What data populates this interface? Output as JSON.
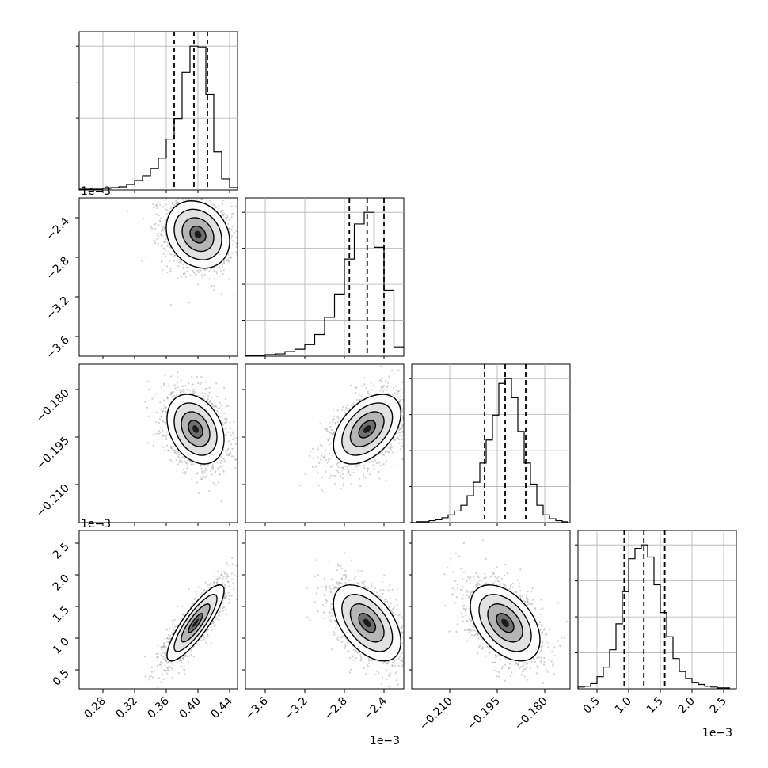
{
  "figure": {
    "type": "corner_plot",
    "parameters": [
      {
        "range": [
          0.25,
          0.45
        ],
        "ticks": [
          "0.28",
          "0.32",
          "0.36",
          "0.40",
          "0.44"
        ],
        "tick_values": [
          0.28,
          0.32,
          0.36,
          0.4,
          0.44
        ],
        "offset": "",
        "quantiles": [
          0.37,
          0.395,
          0.412
        ]
      },
      {
        "range": [
          -3.8,
          -2.2
        ],
        "ticks": [
          "−3.6",
          "−3.2",
          "−2.8",
          "−2.4"
        ],
        "tick_values": [
          -3.6,
          -3.2,
          -2.8,
          -2.4
        ],
        "offset": "1e−3",
        "quantiles": [
          -2.75,
          -2.57,
          -2.4
        ]
      },
      {
        "range": [
          -0.222,
          -0.172
        ],
        "ticks": [
          "−0.210",
          "−0.195",
          "−0.180"
        ],
        "tick_values": [
          -0.21,
          -0.195,
          -0.18
        ],
        "offset": "",
        "quantiles": [
          -0.199,
          -0.1925,
          -0.186
        ]
      },
      {
        "range": [
          0.2,
          2.7
        ],
        "ticks": [
          "0.5",
          "1.0",
          "1.5",
          "2.0",
          "2.5"
        ],
        "tick_values": [
          0.5,
          1.0,
          1.5,
          2.0,
          2.5
        ],
        "offset": "1e−3",
        "quantiles": [
          0.93,
          1.24,
          1.57
        ]
      }
    ],
    "panel_offsets": {
      "row1": "1e−3",
      "row3": "1e−3",
      "col1": "1e−3",
      "col3": "1e−3"
    }
  },
  "chart_data": [
    {
      "type": "histogram",
      "panel": "0-0",
      "bin_centers": [
        0.255,
        0.265,
        0.275,
        0.285,
        0.295,
        0.305,
        0.315,
        0.325,
        0.335,
        0.345,
        0.355,
        0.365,
        0.375,
        0.385,
        0.395,
        0.405,
        0.415,
        0.425,
        0.435,
        0.445
      ],
      "counts": [
        1,
        1,
        1,
        2,
        3,
        4,
        7,
        12,
        18,
        27,
        40,
        64,
        90,
        148,
        181,
        180,
        120,
        48,
        14,
        3
      ],
      "grid": true
    },
    {
      "type": "scatter_contour",
      "panel": "1-0",
      "x_param": 0,
      "y_param": 1,
      "center": [
        0.4,
        -2.57
      ],
      "spread": [
        0.02,
        0.17
      ],
      "correlation": -0.2
    },
    {
      "type": "histogram",
      "panel": "1-1",
      "bin_centers": [
        -3.75,
        -3.65,
        -3.55,
        -3.45,
        -3.35,
        -3.25,
        -3.15,
        -3.05,
        -2.95,
        -2.85,
        -2.75,
        -2.65,
        -2.55,
        -2.45,
        -2.35,
        -2.25
      ],
      "counts": [
        1,
        1,
        2,
        3,
        6,
        9,
        15,
        28,
        50,
        80,
        125,
        170,
        185,
        140,
        85,
        12
      ],
      "grid": true
    },
    {
      "type": "scatter_contour",
      "panel": "2-0",
      "x_param": 0,
      "y_param": 2,
      "center": [
        0.397,
        -0.1925
      ],
      "spread": [
        0.018,
        0.0055
      ],
      "correlation": -0.3
    },
    {
      "type": "scatter_contour",
      "panel": "2-1",
      "x_param": 1,
      "y_param": 2,
      "center": [
        -2.57,
        -0.1925
      ],
      "spread": [
        0.17,
        0.0055
      ],
      "correlation": 0.45
    },
    {
      "type": "histogram",
      "panel": "2-2",
      "bin_centers": [
        -0.2215,
        -0.2195,
        -0.2175,
        -0.2155,
        -0.2135,
        -0.2115,
        -0.2095,
        -0.2075,
        -0.2055,
        -0.2035,
        -0.2015,
        -0.1995,
        -0.1975,
        -0.1955,
        -0.1935,
        -0.1915,
        -0.1895,
        -0.1875,
        -0.1855,
        -0.1835,
        -0.1815,
        -0.1795,
        -0.1775,
        -0.1755,
        -0.1735
      ],
      "counts": [
        0,
        1,
        1,
        2,
        3,
        5,
        8,
        12,
        18,
        28,
        42,
        62,
        86,
        112,
        145,
        150,
        130,
        95,
        62,
        40,
        18,
        8,
        4,
        2,
        1
      ],
      "grid": true
    },
    {
      "type": "scatter_contour",
      "panel": "3-0",
      "x_param": 0,
      "y_param": 3,
      "center": [
        0.397,
        1.24
      ],
      "spread": [
        0.018,
        0.3
      ],
      "correlation": 0.85
    },
    {
      "type": "scatter_contour",
      "panel": "3-1",
      "x_param": 1,
      "y_param": 3,
      "center": [
        -2.57,
        1.24
      ],
      "spread": [
        0.17,
        0.3
      ],
      "correlation": -0.5
    },
    {
      "type": "scatter_contour",
      "panel": "3-2",
      "x_param": 2,
      "y_param": 3,
      "center": [
        -0.1925,
        1.24
      ],
      "spread": [
        0.0055,
        0.3
      ],
      "correlation": -0.45
    },
    {
      "type": "histogram",
      "panel": "3-3",
      "bin_centers": [
        0.25,
        0.35,
        0.45,
        0.55,
        0.65,
        0.75,
        0.85,
        0.95,
        1.05,
        1.15,
        1.25,
        1.35,
        1.45,
        1.55,
        1.65,
        1.75,
        1.85,
        1.95,
        2.05,
        2.15,
        2.25,
        2.35,
        2.45,
        2.55
      ],
      "counts": [
        2,
        3,
        6,
        14,
        25,
        45,
        75,
        112,
        150,
        162,
        166,
        152,
        120,
        88,
        60,
        35,
        20,
        12,
        7,
        5,
        3,
        2,
        1,
        1
      ],
      "grid": true
    }
  ]
}
